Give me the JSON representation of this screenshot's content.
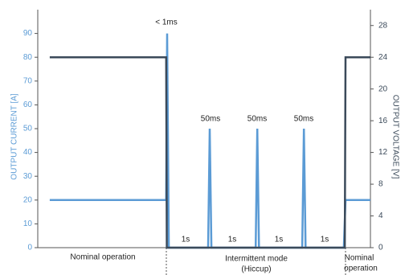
{
  "chart_data": {
    "type": "line",
    "y_label": "OUTPUT CURRENT [A]",
    "y2_label": "OUTPUT VOLTAGE [V]",
    "xlim": [
      0,
      100
    ],
    "ylim": [
      0,
      100
    ],
    "yticks": [
      0,
      10,
      20,
      30,
      40,
      50,
      60,
      70,
      80,
      90
    ],
    "y2lim": [
      0,
      30
    ],
    "y2ticks": [
      0,
      4,
      8,
      12,
      16,
      20,
      24,
      28
    ],
    "series": [
      {
        "name": "Output current",
        "color": "#5b9bd5",
        "axis": "y",
        "x": [
          3.6,
          38.6,
          38.9,
          39.4,
          51.2,
          51.7,
          52.2,
          65.5,
          66.0,
          66.5,
          79.5,
          80.0,
          80.5,
          92.0,
          92.5,
          100
        ],
        "values": [
          20,
          20,
          90,
          0,
          0,
          50,
          0,
          0,
          50,
          0,
          0,
          50,
          0,
          0,
          20,
          20
        ]
      },
      {
        "name": "Output voltage",
        "color": "#3b4a5a",
        "axis": "y2",
        "x": [
          3.6,
          38.6,
          38.8,
          92.3,
          92.5,
          100
        ],
        "values": [
          24,
          24,
          0,
          0,
          24,
          24
        ]
      }
    ],
    "annotations": [
      "< 1ms",
      "50ms",
      "50ms",
      "50ms",
      "1s",
      "1s",
      "1s",
      "1s"
    ],
    "x_labels": [
      "Nominal operation",
      "Intermittent mode",
      "(Hiccup)",
      "Nominal",
      "operation"
    ]
  }
}
